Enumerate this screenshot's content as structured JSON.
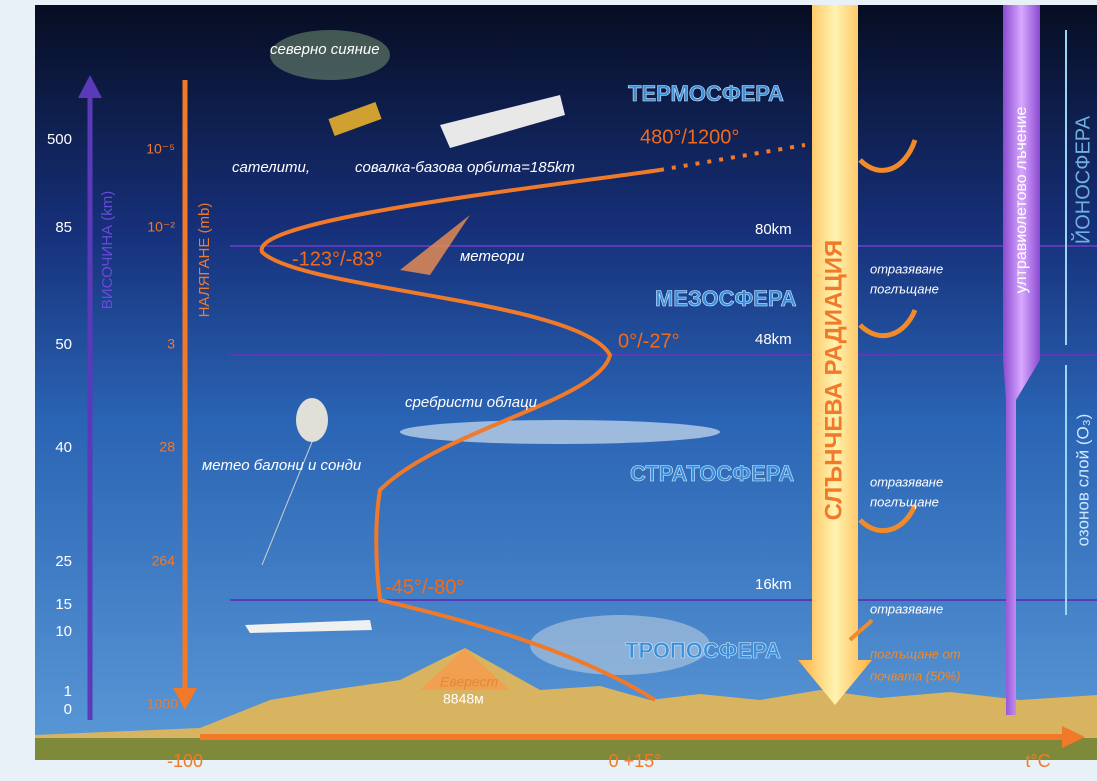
{
  "altitude_axis": {
    "label": "ВИСОЧИНА (km)",
    "ticks": [
      "500",
      "85",
      "50",
      "40",
      "25",
      "15",
      "10",
      "1",
      "0"
    ]
  },
  "pressure_axis": {
    "label": "НАЛЯГАНЕ (mb)",
    "ticks": [
      "10⁻⁵",
      "10⁻²",
      "3",
      "28",
      "264",
      "1000"
    ]
  },
  "layers": [
    "ТЕРМОСФЕРА",
    "МЕЗОСФЕРА",
    "СТРАТОСФЕРА",
    "ТРОПОСФЕРА"
  ],
  "boundaries": [
    "80km",
    "48km",
    "16km"
  ],
  "temperatures": [
    "480°/1200°",
    "-123°/-83°",
    "0°/-27°",
    "-45°/-80°"
  ],
  "objects": {
    "aurora": "северно сияние",
    "satellites": "сателити,",
    "shuttle": "совалка-базова орбита=185km",
    "meteors": "метеори",
    "noctilucent_clouds": "сребристи облаци",
    "balloons": "метео балони и сонди",
    "everest": "Еверест",
    "everest_height": "8848м"
  },
  "radiation": {
    "solar": "СЛЪНЧЕВА РАДИАЦИЯ",
    "uv": "ултравиолетово лъчение",
    "ionosphere": "ЙОНОСФЕРА",
    "ozone": "озонов слой (O₃)"
  },
  "effects": [
    [
      "отразяване",
      "поглъщане"
    ],
    [
      "отразяване",
      "поглъщане"
    ],
    [
      "отразяване",
      "поглъщане от",
      "почвата (50%)"
    ]
  ],
  "temperature_axis": {
    "label": "t°C",
    "ticks": [
      "-100",
      "0  +15°"
    ]
  }
}
